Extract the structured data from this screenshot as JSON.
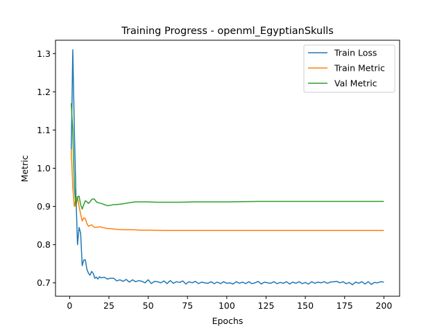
{
  "chart_data": {
    "type": "line",
    "title": "Training Progress - openml_EgyptianSkulls",
    "xlabel": "Epochs",
    "ylabel": "Metric",
    "xlim": [
      -9,
      210
    ],
    "ylim": [
      0.665,
      1.335
    ],
    "xticks": [
      0,
      25,
      50,
      75,
      100,
      125,
      150,
      175,
      200
    ],
    "yticks": [
      0.7,
      0.8,
      0.9,
      1.0,
      1.1,
      1.2,
      1.3
    ],
    "ytick_labels": [
      "0.7",
      "0.8",
      "0.9",
      "1.0",
      "1.1",
      "1.2",
      "1.3"
    ],
    "grid": false,
    "legend_position": "top-right",
    "series": [
      {
        "name": "Train Loss",
        "color": "#1f77b4",
        "points": [
          [
            1,
            1.04
          ],
          [
            2,
            1.31
          ],
          [
            3,
            1.1
          ],
          [
            4,
            0.93
          ],
          [
            5,
            0.8
          ],
          [
            6,
            0.845
          ],
          [
            7,
            0.83
          ],
          [
            8,
            0.745
          ],
          [
            9,
            0.76
          ],
          [
            10,
            0.76
          ],
          [
            11,
            0.735
          ],
          [
            12,
            0.725
          ],
          [
            13,
            0.72
          ],
          [
            14,
            0.73
          ],
          [
            15,
            0.725
          ],
          [
            16,
            0.712
          ],
          [
            17,
            0.715
          ],
          [
            18,
            0.71
          ],
          [
            19,
            0.716
          ],
          [
            20,
            0.713
          ],
          [
            22,
            0.715
          ],
          [
            24,
            0.71
          ],
          [
            26,
            0.712
          ],
          [
            28,
            0.712
          ],
          [
            30,
            0.705
          ],
          [
            32,
            0.708
          ],
          [
            34,
            0.704
          ],
          [
            36,
            0.709
          ],
          [
            38,
            0.702
          ],
          [
            40,
            0.708
          ],
          [
            42,
            0.703
          ],
          [
            44,
            0.706
          ],
          [
            46,
            0.704
          ],
          [
            48,
            0.7
          ],
          [
            50,
            0.708
          ],
          [
            52,
            0.698
          ],
          [
            54,
            0.704
          ],
          [
            56,
            0.703
          ],
          [
            58,
            0.7
          ],
          [
            60,
            0.705
          ],
          [
            62,
            0.698
          ],
          [
            64,
            0.706
          ],
          [
            66,
            0.699
          ],
          [
            68,
            0.703
          ],
          [
            70,
            0.701
          ],
          [
            72,
            0.705
          ],
          [
            74,
            0.697
          ],
          [
            76,
            0.703
          ],
          [
            78,
            0.7
          ],
          [
            80,
            0.704
          ],
          [
            82,
            0.698
          ],
          [
            84,
            0.702
          ],
          [
            86,
            0.7
          ],
          [
            88,
            0.699
          ],
          [
            90,
            0.703
          ],
          [
            92,
            0.698
          ],
          [
            94,
            0.702
          ],
          [
            96,
            0.698
          ],
          [
            98,
            0.703
          ],
          [
            100,
            0.699
          ],
          [
            102,
            0.7
          ],
          [
            104,
            0.697
          ],
          [
            106,
            0.703
          ],
          [
            108,
            0.699
          ],
          [
            110,
            0.702
          ],
          [
            112,
            0.698
          ],
          [
            114,
            0.703
          ],
          [
            116,
            0.698
          ],
          [
            118,
            0.7
          ],
          [
            120,
            0.704
          ],
          [
            122,
            0.697
          ],
          [
            124,
            0.702
          ],
          [
            126,
            0.7
          ],
          [
            128,
            0.699
          ],
          [
            130,
            0.703
          ],
          [
            132,
            0.698
          ],
          [
            134,
            0.701
          ],
          [
            136,
            0.699
          ],
          [
            138,
            0.703
          ],
          [
            140,
            0.697
          ],
          [
            142,
            0.702
          ],
          [
            144,
            0.699
          ],
          [
            146,
            0.703
          ],
          [
            148,
            0.698
          ],
          [
            150,
            0.701
          ],
          [
            152,
            0.697
          ],
          [
            154,
            0.703
          ],
          [
            156,
            0.699
          ],
          [
            158,
            0.702
          ],
          [
            160,
            0.7
          ],
          [
            162,
            0.703
          ],
          [
            164,
            0.699
          ],
          [
            166,
            0.702
          ],
          [
            168,
            0.703
          ],
          [
            170,
            0.704
          ],
          [
            172,
            0.7
          ],
          [
            174,
            0.703
          ],
          [
            176,
            0.698
          ],
          [
            178,
            0.701
          ],
          [
            180,
            0.695
          ],
          [
            182,
            0.702
          ],
          [
            184,
            0.699
          ],
          [
            186,
            0.703
          ],
          [
            188,
            0.697
          ],
          [
            190,
            0.703
          ],
          [
            192,
            0.696
          ],
          [
            194,
            0.701
          ],
          [
            196,
            0.7
          ],
          [
            198,
            0.703
          ],
          [
            200,
            0.702
          ]
        ]
      },
      {
        "name": "Train Metric",
        "color": "#ff7f0e",
        "points": [
          [
            1,
            1.05
          ],
          [
            2,
            0.95
          ],
          [
            3,
            0.9
          ],
          [
            4,
            0.92
          ],
          [
            5,
            0.925
          ],
          [
            6,
            0.9
          ],
          [
            7,
            0.88
          ],
          [
            8,
            0.862
          ],
          [
            9,
            0.87
          ],
          [
            10,
            0.868
          ],
          [
            11,
            0.855
          ],
          [
            12,
            0.848
          ],
          [
            13,
            0.85
          ],
          [
            14,
            0.852
          ],
          [
            15,
            0.848
          ],
          [
            16,
            0.845
          ],
          [
            17,
            0.846
          ],
          [
            18,
            0.845
          ],
          [
            19,
            0.847
          ],
          [
            20,
            0.846
          ],
          [
            22,
            0.844
          ],
          [
            24,
            0.842
          ],
          [
            26,
            0.842
          ],
          [
            28,
            0.841
          ],
          [
            30,
            0.84
          ],
          [
            35,
            0.839
          ],
          [
            40,
            0.839
          ],
          [
            45,
            0.838
          ],
          [
            50,
            0.838
          ],
          [
            60,
            0.837
          ],
          [
            70,
            0.837
          ],
          [
            80,
            0.837
          ],
          [
            90,
            0.837
          ],
          [
            100,
            0.837
          ],
          [
            120,
            0.837
          ],
          [
            140,
            0.837
          ],
          [
            160,
            0.837
          ],
          [
            180,
            0.837
          ],
          [
            200,
            0.837
          ]
        ]
      },
      {
        "name": "Val Metric",
        "color": "#2ca02c",
        "points": [
          [
            1,
            1.17
          ],
          [
            2,
            1.1
          ],
          [
            3,
            0.95
          ],
          [
            4,
            0.9
          ],
          [
            5,
            0.925
          ],
          [
            6,
            0.927
          ],
          [
            7,
            0.905
          ],
          [
            8,
            0.893
          ],
          [
            9,
            0.905
          ],
          [
            10,
            0.915
          ],
          [
            11,
            0.912
          ],
          [
            12,
            0.908
          ],
          [
            13,
            0.912
          ],
          [
            14,
            0.918
          ],
          [
            15,
            0.92
          ],
          [
            16,
            0.918
          ],
          [
            17,
            0.912
          ],
          [
            18,
            0.91
          ],
          [
            20,
            0.908
          ],
          [
            22,
            0.905
          ],
          [
            24,
            0.902
          ],
          [
            26,
            0.903
          ],
          [
            28,
            0.905
          ],
          [
            30,
            0.905
          ],
          [
            34,
            0.907
          ],
          [
            38,
            0.91
          ],
          [
            42,
            0.912
          ],
          [
            46,
            0.912
          ],
          [
            50,
            0.912
          ],
          [
            55,
            0.911
          ],
          [
            60,
            0.911
          ],
          [
            70,
            0.911
          ],
          [
            80,
            0.912
          ],
          [
            90,
            0.912
          ],
          [
            100,
            0.912
          ],
          [
            120,
            0.913
          ],
          [
            140,
            0.913
          ],
          [
            160,
            0.913
          ],
          [
            180,
            0.913
          ],
          [
            200,
            0.913
          ]
        ]
      }
    ]
  }
}
